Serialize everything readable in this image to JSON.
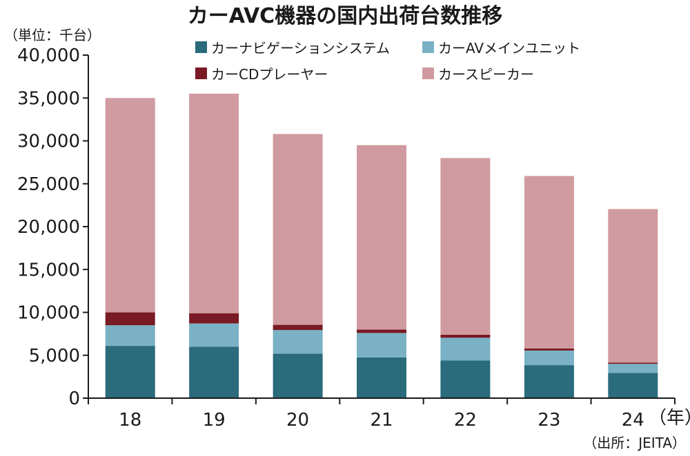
{
  "chart_data": {
    "type": "bar",
    "stacked": true,
    "title": "カーAVC機器の国内出荷台数推移",
    "unit_label": "（単位：千台）",
    "x_unit_label": "（年）",
    "source": "（出所：JEITA）",
    "categories": [
      "18",
      "19",
      "20",
      "21",
      "22",
      "23",
      "24"
    ],
    "ylim": [
      0,
      40000
    ],
    "yticks": [
      "0",
      "5,000",
      "10,000",
      "15,000",
      "20,000",
      "25,000",
      "30,000",
      "35,000",
      "40,000"
    ],
    "ytick_values": [
      0,
      5000,
      10000,
      15000,
      20000,
      25000,
      30000,
      35000,
      40000
    ],
    "grid": false,
    "legend_position": "top",
    "series": [
      {
        "name": "カーナビゲーションシステム",
        "color": "#2a6b7c",
        "values": [
          6100,
          6000,
          5200,
          4750,
          4400,
          3850,
          2950
        ]
      },
      {
        "name": "カーAVメインユニット",
        "color": "#7ab1c4",
        "values": [
          2400,
          2700,
          2750,
          2850,
          2650,
          1700,
          1050
        ]
      },
      {
        "name": "カーCDプレーヤー",
        "color": "#7a1a24",
        "values": [
          1500,
          1200,
          600,
          400,
          350,
          250,
          150
        ]
      },
      {
        "name": "カースピーカー",
        "color": "#d09ba0",
        "values": [
          25000,
          25600,
          22250,
          21500,
          20600,
          20100,
          17900
        ]
      }
    ]
  }
}
